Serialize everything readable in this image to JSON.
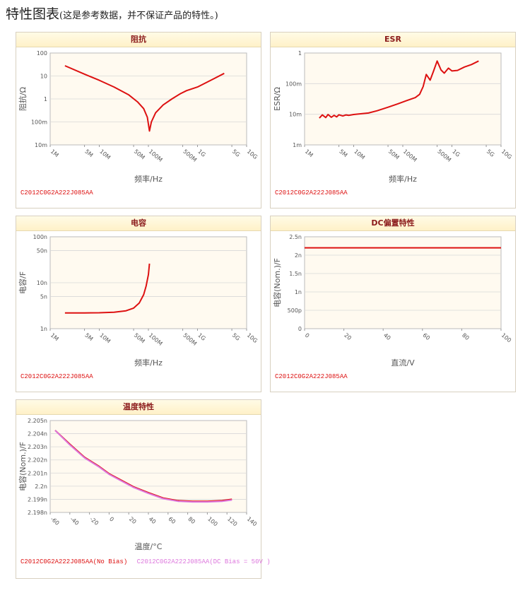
{
  "page": {
    "title": "特性图表",
    "note": "(这是参考数据，并不保证产品的特性。)"
  },
  "colors": {
    "red": "#dd1111",
    "pink": "#dd77dd",
    "header_text": "#8b1a1a"
  },
  "panels": [
    {
      "id": "impedance",
      "header": "阻抗",
      "legend": [
        {
          "text": "C2012C0G2A222J085AA",
          "color": "#dd1111"
        }
      ]
    },
    {
      "id": "esr",
      "header": "ESR",
      "legend": [
        {
          "text": "C2012C0G2A222J085AA",
          "color": "#dd1111"
        }
      ]
    },
    {
      "id": "capacitance",
      "header": "电容",
      "legend": [
        {
          "text": "C2012C0G2A222J085AA",
          "color": "#dd1111"
        }
      ]
    },
    {
      "id": "dcbias",
      "header": "DC偏置特性",
      "legend": [
        {
          "text": "C2012C0G2A222J085AA",
          "color": "#dd1111"
        }
      ]
    },
    {
      "id": "temperature",
      "header": "温度特性",
      "legend": [
        {
          "text": "C2012C0G2A222J085AA(No Bias)",
          "color": "#dd1111"
        },
        {
          "text": "C2012C0G2A222J085AA(DC Bias = 50V )",
          "color": "#dd77dd"
        }
      ]
    }
  ],
  "chart_data": [
    {
      "type": "line",
      "title": "阻抗",
      "xlabel": "频率/Hz",
      "ylabel": "阻抗/Ω",
      "x_scale": "log",
      "y_scale": "log",
      "xlim": [
        1000000,
        10000000000
      ],
      "ylim": [
        0.01,
        100
      ],
      "x_ticks": [
        {
          "v": 1000000,
          "label": "1M"
        },
        {
          "v": 5000000,
          "label": "5M"
        },
        {
          "v": 10000000,
          "label": "10M"
        },
        {
          "v": 50000000,
          "label": "50M"
        },
        {
          "v": 100000000,
          "label": "100M"
        },
        {
          "v": 500000000,
          "label": "500M"
        },
        {
          "v": 1000000000,
          "label": "1G"
        },
        {
          "v": 5000000000,
          "label": "5G"
        },
        {
          "v": 10000000000,
          "label": "10G"
        }
      ],
      "y_ticks": [
        {
          "v": 100,
          "label": "100"
        },
        {
          "v": 10,
          "label": "10"
        },
        {
          "v": 1,
          "label": "1"
        },
        {
          "v": 0.1,
          "label": "100m"
        },
        {
          "v": 0.01,
          "label": "10m"
        }
      ],
      "series": [
        {
          "color": "#dd1111",
          "x": [
            2000000,
            5000000,
            10000000,
            20000000,
            40000000,
            60000000,
            80000000,
            95000000,
            105000000,
            115000000,
            140000000,
            200000000,
            300000000,
            450000000,
            600000000,
            1000000000,
            2000000000,
            3500000000
          ],
          "y": [
            28,
            12,
            6.5,
            3.3,
            1.5,
            0.75,
            0.38,
            0.16,
            0.04,
            0.1,
            0.25,
            0.55,
            1.0,
            1.7,
            2.3,
            3.3,
            7.0,
            13
          ]
        }
      ]
    },
    {
      "type": "line",
      "title": "ESR",
      "xlabel": "频率/Hz",
      "ylabel": "ESR/Ω",
      "x_scale": "log",
      "y_scale": "log",
      "xlim": [
        1000000,
        10000000000
      ],
      "ylim": [
        0.001,
        1
      ],
      "x_ticks": [
        {
          "v": 1000000,
          "label": "1M"
        },
        {
          "v": 5000000,
          "label": "5M"
        },
        {
          "v": 10000000,
          "label": "10M"
        },
        {
          "v": 50000000,
          "label": "50M"
        },
        {
          "v": 100000000,
          "label": "100M"
        },
        {
          "v": 500000000,
          "label": "500M"
        },
        {
          "v": 1000000000,
          "label": "1G"
        },
        {
          "v": 5000000000,
          "label": "5G"
        },
        {
          "v": 10000000000,
          "label": "10G"
        }
      ],
      "y_ticks": [
        {
          "v": 1,
          "label": "1"
        },
        {
          "v": 0.1,
          "label": "100m"
        },
        {
          "v": 0.01,
          "label": "10m"
        },
        {
          "v": 0.001,
          "label": "1m"
        }
      ],
      "series": [
        {
          "color": "#dd1111",
          "x": [
            2000000,
            2300000,
            2700000,
            3000000,
            3500000,
            4000000,
            4500000,
            5000000,
            6000000,
            7000000,
            8000000,
            10000000,
            15000000,
            20000000,
            30000000,
            50000000,
            80000000,
            120000000,
            180000000,
            220000000,
            260000000,
            300000000,
            360000000,
            420000000,
            500000000,
            600000000,
            700000000,
            850000000,
            1000000000,
            1300000000,
            1800000000,
            2500000000,
            3500000000
          ],
          "y": [
            0.0075,
            0.0095,
            0.0078,
            0.0098,
            0.008,
            0.0092,
            0.0082,
            0.0096,
            0.0088,
            0.0095,
            0.0092,
            0.0098,
            0.0105,
            0.011,
            0.013,
            0.017,
            0.022,
            0.028,
            0.035,
            0.045,
            0.08,
            0.2,
            0.13,
            0.25,
            0.55,
            0.28,
            0.22,
            0.32,
            0.26,
            0.27,
            0.35,
            0.42,
            0.55
          ]
        }
      ]
    },
    {
      "type": "line",
      "title": "电容",
      "xlabel": "频率/Hz",
      "ylabel": "电容/F",
      "x_scale": "log",
      "y_scale": "log",
      "xlim": [
        1000000,
        10000000000
      ],
      "ylim": [
        1e-09,
        1e-07
      ],
      "x_ticks": [
        {
          "v": 1000000,
          "label": "1M"
        },
        {
          "v": 5000000,
          "label": "5M"
        },
        {
          "v": 10000000,
          "label": "10M"
        },
        {
          "v": 50000000,
          "label": "50M"
        },
        {
          "v": 100000000,
          "label": "100M"
        },
        {
          "v": 500000000,
          "label": "500M"
        },
        {
          "v": 1000000000,
          "label": "1G"
        },
        {
          "v": 5000000000,
          "label": "5G"
        },
        {
          "v": 10000000000,
          "label": "10G"
        }
      ],
      "y_ticks": [
        {
          "v": 1e-07,
          "label": "100n"
        },
        {
          "v": 5e-08,
          "label": "50n"
        },
        {
          "v": 1e-08,
          "label": "10n"
        },
        {
          "v": 5e-09,
          "label": "5n"
        },
        {
          "v": 1e-09,
          "label": "1n"
        }
      ],
      "series": [
        {
          "color": "#dd1111",
          "x": [
            2000000,
            5000000,
            10000000,
            20000000,
            35000000,
            50000000,
            65000000,
            80000000,
            90000000,
            100000000,
            105000000
          ],
          "y": [
            2.2e-09,
            2.2e-09,
            2.22e-09,
            2.28e-09,
            2.45e-09,
            2.8e-09,
            3.6e-09,
            5.5e-09,
            8.5e-09,
            1.5e-08,
            2.6e-08
          ]
        }
      ]
    },
    {
      "type": "line",
      "title": "DC偏置特性",
      "xlabel": "直流/V",
      "ylabel": "电容(Nom.)/F",
      "xlim": [
        0,
        100
      ],
      "ylim": [
        0,
        2.5e-09
      ],
      "x_ticks": [
        {
          "v": 0,
          "label": "0"
        },
        {
          "v": 20,
          "label": "20"
        },
        {
          "v": 40,
          "label": "40"
        },
        {
          "v": 60,
          "label": "60"
        },
        {
          "v": 80,
          "label": "80"
        },
        {
          "v": 100,
          "label": "100"
        }
      ],
      "y_ticks": [
        {
          "v": 2.5e-09,
          "label": "2.5n"
        },
        {
          "v": 2e-09,
          "label": "2n"
        },
        {
          "v": 1.5e-09,
          "label": "1.5n"
        },
        {
          "v": 1e-09,
          "label": "1n"
        },
        {
          "v": 5e-10,
          "label": "500p"
        },
        {
          "v": 0,
          "label": "0"
        }
      ],
      "series": [
        {
          "color": "#dd1111",
          "x": [
            0,
            100
          ],
          "y": [
            2.2e-09,
            2.2e-09
          ]
        }
      ]
    },
    {
      "type": "line",
      "title": "温度特性",
      "xlabel": "温度/°C",
      "ylabel": "电容(Nom.)/F",
      "xlim": [
        -60,
        140
      ],
      "ylim": [
        2.198e-09,
        2.205e-09
      ],
      "x_ticks": [
        {
          "v": -60,
          "label": "-60"
        },
        {
          "v": -40,
          "label": "-40"
        },
        {
          "v": -20,
          "label": "-20"
        },
        {
          "v": 0,
          "label": "0"
        },
        {
          "v": 20,
          "label": "20"
        },
        {
          "v": 40,
          "label": "40"
        },
        {
          "v": 60,
          "label": "60"
        },
        {
          "v": 80,
          "label": "80"
        },
        {
          "v": 100,
          "label": "100"
        },
        {
          "v": 120,
          "label": "120"
        },
        {
          "v": 140,
          "label": "140"
        }
      ],
      "y_ticks": [
        {
          "v": 2.205e-09,
          "label": "2.205n"
        },
        {
          "v": 2.204e-09,
          "label": "2.204n"
        },
        {
          "v": 2.203e-09,
          "label": "2.203n"
        },
        {
          "v": 2.202e-09,
          "label": "2.202n"
        },
        {
          "v": 2.201e-09,
          "label": "2.201n"
        },
        {
          "v": 2.2e-09,
          "label": "2.2n"
        },
        {
          "v": 2.199e-09,
          "label": "2.199n"
        },
        {
          "v": 2.198e-09,
          "label": "2.198n"
        }
      ],
      "series": [
        {
          "name": "C2012C0G2A222J085AA(No Bias)",
          "color": "#dd1111",
          "x": [
            -55,
            -40,
            -25,
            -10,
            0,
            10,
            25,
            40,
            55,
            70,
            85,
            100,
            115,
            125
          ],
          "y": [
            2.20425e-09,
            2.2032e-09,
            2.2022e-09,
            2.2015e-09,
            2.20095e-09,
            2.20055e-09,
            2.19995e-09,
            2.1995e-09,
            2.1991e-09,
            2.1989e-09,
            2.19885e-09,
            2.19885e-09,
            2.1989e-09,
            2.199e-09
          ]
        },
        {
          "name": "C2012C0G2A222J085AA(DC Bias = 50V )",
          "color": "#dd77dd",
          "x": [
            -55,
            -40,
            -25,
            -10,
            0,
            10,
            25,
            40,
            55,
            70,
            85,
            100,
            115,
            125
          ],
          "y": [
            2.20425e-09,
            2.20315e-09,
            2.20215e-09,
            2.20145e-09,
            2.2009e-09,
            2.2005e-09,
            2.1999e-09,
            2.19945e-09,
            2.19905e-09,
            2.19885e-09,
            2.1988e-09,
            2.1988e-09,
            2.19885e-09,
            2.19895e-09
          ]
        }
      ]
    }
  ]
}
